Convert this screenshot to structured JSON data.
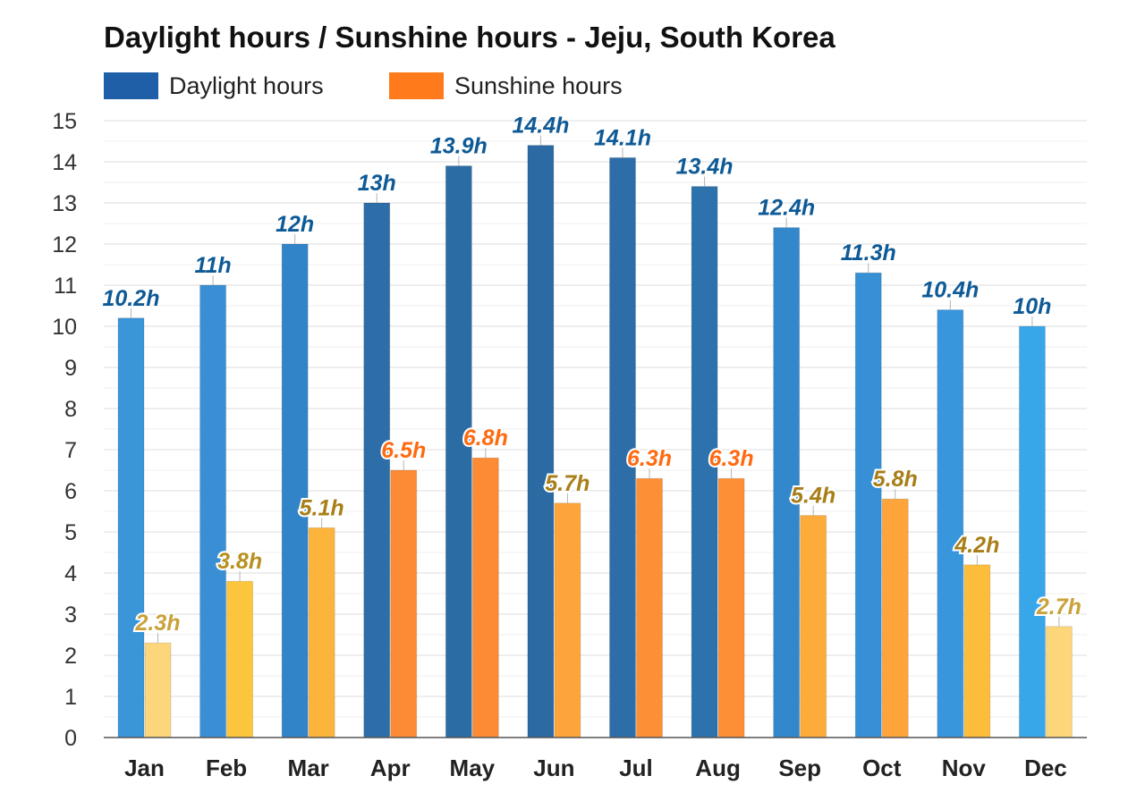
{
  "chart_data": {
    "type": "bar",
    "title": "Daylight hours / Sunshine hours - Jeju, South Korea",
    "categories": [
      "Jan",
      "Feb",
      "Mar",
      "Apr",
      "May",
      "Jun",
      "Jul",
      "Aug",
      "Sep",
      "Oct",
      "Nov",
      "Dec"
    ],
    "series": [
      {
        "name": "Daylight hours",
        "values": [
          10.2,
          11,
          12,
          13,
          13.9,
          14.4,
          14.1,
          13.4,
          12.4,
          11.3,
          10.4,
          10
        ],
        "labels": [
          "10.2h",
          "11h",
          "12h",
          "13h",
          "13.9h",
          "14.4h",
          "14.1h",
          "13.4h",
          "12.4h",
          "11.3h",
          "10.4h",
          "10h"
        ],
        "color": "#1f5fa8",
        "colors": [
          "#3a95d9",
          "#3a8fd4",
          "#3184c7",
          "#2d6ea8",
          "#2c6ca5",
          "#2b6aa2",
          "#2d6ea8",
          "#2d72ad",
          "#3388cc",
          "#3790d6",
          "#3896dd",
          "#38a7ea"
        ]
      },
      {
        "name": "Sunshine hours",
        "values": [
          2.3,
          3.8,
          5.1,
          6.5,
          6.8,
          5.7,
          6.3,
          6.3,
          5.4,
          5.8,
          4.2,
          2.7
        ],
        "labels": [
          "2.3h",
          "3.8h",
          "5.1h",
          "6.5h",
          "6.8h",
          "5.7h",
          "6.3h",
          "6.3h",
          "5.4h",
          "5.8h",
          "4.2h",
          "2.7h"
        ],
        "color": "#ff7a1a",
        "colors": [
          "#fdd57a",
          "#fcc53e",
          "#fcb43b",
          "#fd8b35",
          "#fd8b35",
          "#fda53a",
          "#fd8f36",
          "#fd8f36",
          "#fdab3a",
          "#fda43a",
          "#fdbd3c",
          "#fdd67a"
        ],
        "label_colors": [
          "#c9a23a",
          "#b8901e",
          "#a87e17",
          "#ff6a10",
          "#ff6a10",
          "#a87e17",
          "#ff6a10",
          "#ff6a10",
          "#a87e17",
          "#a87e17",
          "#a87e17",
          "#c9a23a"
        ]
      }
    ],
    "ylim": [
      0,
      15
    ],
    "yticks": [
      0,
      1,
      2,
      3,
      4,
      5,
      6,
      7,
      8,
      9,
      10,
      11,
      12,
      13,
      14,
      15
    ],
    "grid": true,
    "legend": "top-left"
  }
}
